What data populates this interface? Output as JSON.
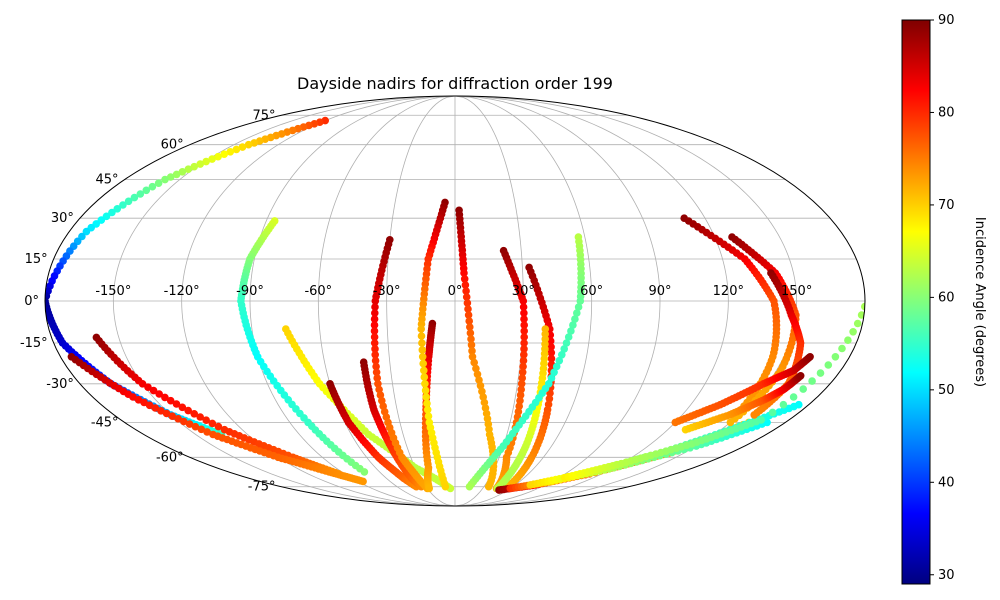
{
  "chart_data": {
    "type": "scatter",
    "projection": "mollweide",
    "title": "Dayside nadirs for diffraction order 199",
    "grid": true,
    "xlim": [
      -180,
      180
    ],
    "ylim": [
      -90,
      90
    ],
    "lon_ticks": [
      "-150°",
      "-120°",
      "-90°",
      "-60°",
      "-30°",
      "0°",
      "30°",
      "60°",
      "90°",
      "120°",
      "150°"
    ],
    "lon_tick_values": [
      -150,
      -120,
      -90,
      -60,
      -30,
      0,
      30,
      60,
      90,
      120,
      150
    ],
    "lat_ticks": [
      "75°",
      "60°",
      "45°",
      "30°",
      "15°",
      "0°",
      "-15°",
      "-30°",
      "-45°",
      "-60°",
      "-75°"
    ],
    "lat_tick_values": [
      75,
      60,
      45,
      30,
      15,
      0,
      -15,
      -30,
      -45,
      -60,
      -75
    ],
    "colorbar": {
      "label": "Incidence Angle (degrees)",
      "range": [
        29,
        90
      ],
      "ticks": [
        "30",
        "40",
        "50",
        "60",
        "70",
        "80",
        "90"
      ],
      "tick_values": [
        30,
        40,
        50,
        60,
        70,
        80,
        90
      ],
      "colormap": "jet"
    },
    "tracks": [
      {
        "lon": [
          -120,
          -140,
          -158,
          -172,
          -180
        ],
        "lat": [
          72,
          60,
          45,
          25,
          0
        ],
        "inc": [
          80,
          70,
          60,
          50,
          30
        ]
      },
      {
        "lon": [
          -180,
          -176,
          -165,
          -150,
          -135
        ],
        "lat": [
          0,
          -15,
          -30,
          -42,
          -50
        ],
        "inc": [
          30,
          33,
          40,
          48,
          55
        ]
      },
      {
        "lon": [
          -160,
          -150,
          -130,
          -110,
          -95
        ],
        "lat": [
          -13,
          -30,
          -48,
          -60,
          -68
        ],
        "inc": [
          89,
          83,
          80,
          78,
          74
        ]
      },
      {
        "lon": [
          -175,
          -160,
          -140,
          -120,
          -100,
          -85
        ],
        "lat": [
          -20,
          -35,
          -50,
          -60,
          -67,
          -72
        ],
        "inc": [
          89,
          82,
          78,
          77,
          75,
          74
        ]
      },
      {
        "lon": [
          -86,
          -92,
          -94,
          -90,
          -80,
          -72
        ],
        "lat": [
          29,
          15,
          0,
          -20,
          -45,
          -67
        ],
        "inc": [
          65,
          60,
          55,
          52,
          55,
          60
        ]
      },
      {
        "lon": [
          -75,
          -65,
          -50,
          -30,
          -5
        ],
        "lat": [
          -10,
          -30,
          -50,
          -65,
          -76
        ],
        "inc": [
          70,
          67,
          64,
          63,
          64
        ]
      },
      {
        "lon": [
          -60,
          -58,
          -52,
          -45,
          -40
        ],
        "lat": [
          -30,
          -45,
          -60,
          -70,
          -75
        ],
        "inc": [
          89,
          85,
          80,
          77,
          75
        ]
      },
      {
        "lon": [
          -42,
          -42,
          -40,
          -38,
          -35
        ],
        "lat": [
          -22,
          -40,
          -55,
          -70,
          -75
        ],
        "inc": [
          89,
          85,
          80,
          77,
          75
        ]
      },
      {
        "lon": [
          -30,
          -35,
          -37,
          -36,
          -30
        ],
        "lat": [
          22,
          0,
          -30,
          -60,
          -76
        ],
        "inc": [
          89,
          84,
          78,
          75,
          73
        ]
      },
      {
        "lon": [
          -10,
          -12,
          -15,
          -20,
          -28
        ],
        "lat": [
          -8,
          -20,
          -40,
          -65,
          -76
        ],
        "inc": [
          89,
          84,
          78,
          74,
          72
        ]
      },
      {
        "lon": [
          -5,
          -12,
          -15,
          -14,
          -10
        ],
        "lat": [
          36,
          15,
          -10,
          -45,
          -75
        ],
        "inc": [
          89,
          80,
          72,
          68,
          70
        ]
      },
      {
        "lon": [
          2,
          4,
          8,
          20,
          35
        ],
        "lat": [
          33,
          10,
          -20,
          -50,
          -75
        ],
        "inc": [
          89,
          82,
          75,
          72,
          72
        ]
      },
      {
        "lon": [
          22,
          30,
          32,
          35,
          45
        ],
        "lat": [
          18,
          0,
          -30,
          -60,
          -76
        ],
        "inc": [
          89,
          83,
          78,
          75,
          73
        ]
      },
      {
        "lon": [
          33,
          42,
          48,
          52,
          55
        ],
        "lat": [
          12,
          -10,
          -40,
          -60,
          -75
        ],
        "inc": [
          89,
          83,
          78,
          75,
          72
        ]
      },
      {
        "lon": [
          40,
          42,
          44,
          45,
          46
        ],
        "lat": [
          -10,
          -35,
          -55,
          -70,
          -76
        ],
        "inc": [
          72,
          68,
          64,
          62,
          63
        ]
      },
      {
        "lon": [
          57,
          55,
          45,
          30,
          15
        ],
        "lat": [
          23,
          0,
          -30,
          -55,
          -75
        ],
        "inc": [
          63,
          58,
          54,
          56,
          62
        ]
      },
      {
        "lon": [
          50,
          80,
          110,
          140,
          160
        ],
        "lat": [
          -77,
          -74,
          -68,
          -58,
          -45
        ],
        "inc": [
          89,
          82,
          78,
          75,
          70
        ]
      },
      {
        "lon": [
          60,
          90,
          120,
          150,
          170
        ],
        "lat": [
          -76,
          -72,
          -65,
          -55,
          -45
        ],
        "inc": [
          80,
          70,
          62,
          57,
          52
        ]
      },
      {
        "lon": [
          75,
          105,
          135,
          155,
          175
        ],
        "lat": [
          -74,
          -68,
          -58,
          -48,
          -38
        ],
        "inc": [
          70,
          64,
          58,
          55,
          52
        ]
      },
      {
        "lon": [
          95,
          120,
          145,
          165,
          180
        ],
        "lat": [
          -70,
          -63,
          -54,
          -44,
          -2
        ],
        "inc": [
          68,
          63,
          60,
          57,
          62
        ]
      },
      {
        "lon": [
          110,
          130,
          140,
          145,
          148
        ],
        "lat": [
          30,
          15,
          0,
          -20,
          -40
        ],
        "inc": [
          89,
          83,
          78,
          75,
          74
        ]
      },
      {
        "lon": [
          128,
          142,
          150,
          152,
          150
        ],
        "lat": [
          23,
          10,
          -5,
          -25,
          -45
        ],
        "inc": [
          89,
          83,
          78,
          74,
          72
        ]
      },
      {
        "lon": [
          140,
          148,
          155,
          160,
          158
        ],
        "lat": [
          10,
          -5,
          -15,
          -30,
          -42
        ],
        "inc": [
          89,
          84,
          80,
          77,
          75
        ]
      },
      {
        "lon": [
          120,
          135,
          148,
          158,
          162
        ],
        "lat": [
          -45,
          -38,
          -30,
          -25,
          -20
        ],
        "inc": [
          76,
          78,
          80,
          85,
          89
        ]
      },
      {
        "lon": [
          130,
          145,
          155,
          160,
          163
        ],
        "lat": [
          -48,
          -42,
          -36,
          -32,
          -27
        ],
        "inc": [
          70,
          74,
          78,
          83,
          89
        ]
      }
    ]
  }
}
